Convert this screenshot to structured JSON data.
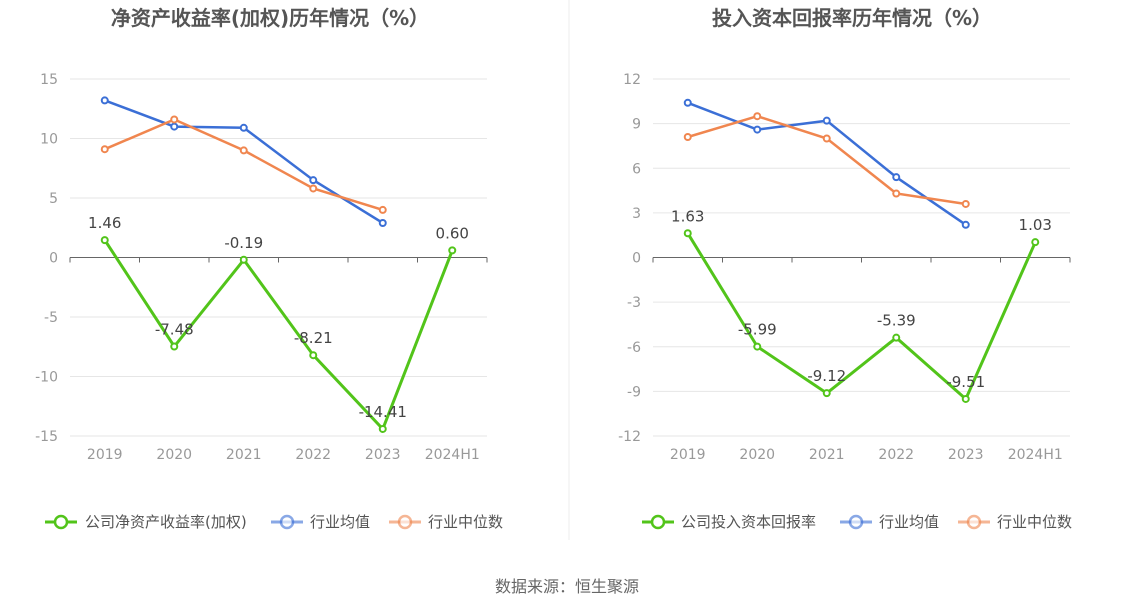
{
  "source": "数据来源：恒生聚源",
  "chart_data": [
    {
      "type": "line",
      "title": "净资产收益率(加权)历年情况（%）",
      "categories": [
        "2019",
        "2020",
        "2021",
        "2022",
        "2023",
        "2024H1"
      ],
      "ylim": [
        -15,
        15
      ],
      "yticks": [
        15,
        10,
        5,
        0,
        -5,
        -10,
        -15
      ],
      "grid": true,
      "legend_position": "bottom",
      "series": [
        {
          "name": "公司净资产收益率(加权)",
          "color": "#52c41a",
          "labels": [
            "1.46",
            "-7.48",
            "-0.19",
            "-8.21",
            "-14.41",
            "0.60"
          ],
          "values": [
            1.46,
            -7.48,
            -0.19,
            -8.21,
            -14.41,
            0.6
          ]
        },
        {
          "name": "行业均值",
          "color": "#3b6fd6",
          "values": [
            13.2,
            11.0,
            10.9,
            6.5,
            2.9,
            null
          ]
        },
        {
          "name": "行业中位数",
          "color": "#f0864f",
          "values": [
            9.1,
            11.6,
            9.0,
            5.8,
            4.0,
            null
          ]
        }
      ]
    },
    {
      "type": "line",
      "title": "投入资本回报率历年情况（%）",
      "categories": [
        "2019",
        "2020",
        "2021",
        "2022",
        "2023",
        "2024H1"
      ],
      "ylim": [
        -12,
        12
      ],
      "yticks": [
        12,
        9,
        6,
        3,
        0,
        -3,
        -6,
        -9,
        -12
      ],
      "grid": true,
      "legend_position": "bottom",
      "series": [
        {
          "name": "公司投入资本回报率",
          "color": "#52c41a",
          "labels": [
            "1.63",
            "-5.99",
            "-9.12",
            "-5.39",
            "-9.51",
            "1.03"
          ],
          "values": [
            1.63,
            -5.99,
            -9.12,
            -5.39,
            -9.51,
            1.03
          ]
        },
        {
          "name": "行业均值",
          "color": "#3b6fd6",
          "values": [
            10.4,
            8.6,
            9.2,
            5.4,
            2.2,
            null
          ]
        },
        {
          "name": "行业中位数",
          "color": "#f0864f",
          "values": [
            8.1,
            9.5,
            8.0,
            4.3,
            3.6,
            null
          ]
        }
      ]
    }
  ]
}
